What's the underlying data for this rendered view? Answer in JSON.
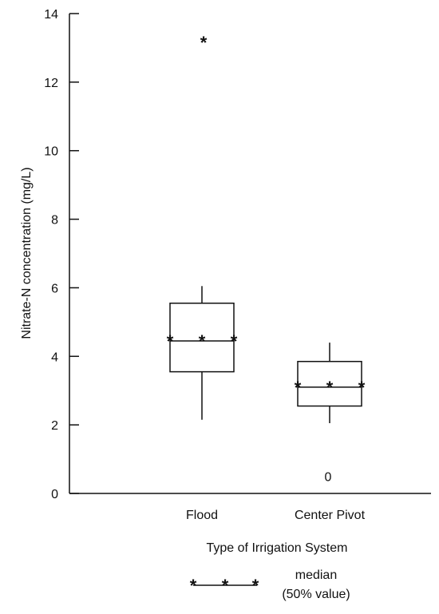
{
  "chart_data": {
    "type": "box",
    "ylabel": "Nitrate-N concentration (mg/L)",
    "xlabel": "Type of Irrigation System",
    "ylim": [
      0,
      14
    ],
    "yticks": [
      0,
      2,
      4,
      6,
      8,
      10,
      12,
      14
    ],
    "categories": [
      "Flood",
      "Center Pivot"
    ],
    "boxes": [
      {
        "category": "Flood",
        "whisker_low": 2.15,
        "q1": 3.55,
        "median": 4.45,
        "q3": 5.55,
        "whisker_high": 6.05
      },
      {
        "category": "Center Pivot",
        "whisker_low": 2.05,
        "q1": 2.55,
        "median": 3.1,
        "q3": 3.85,
        "whisker_high": 4.4
      }
    ],
    "outliers": [
      {
        "category": "Flood",
        "value": 13.25,
        "marker": "*"
      },
      {
        "category": "Center Pivot",
        "value": 0.5,
        "marker": "0"
      }
    ],
    "legend": {
      "marker": "*",
      "line1": "median",
      "line2": "(50% value)"
    }
  }
}
